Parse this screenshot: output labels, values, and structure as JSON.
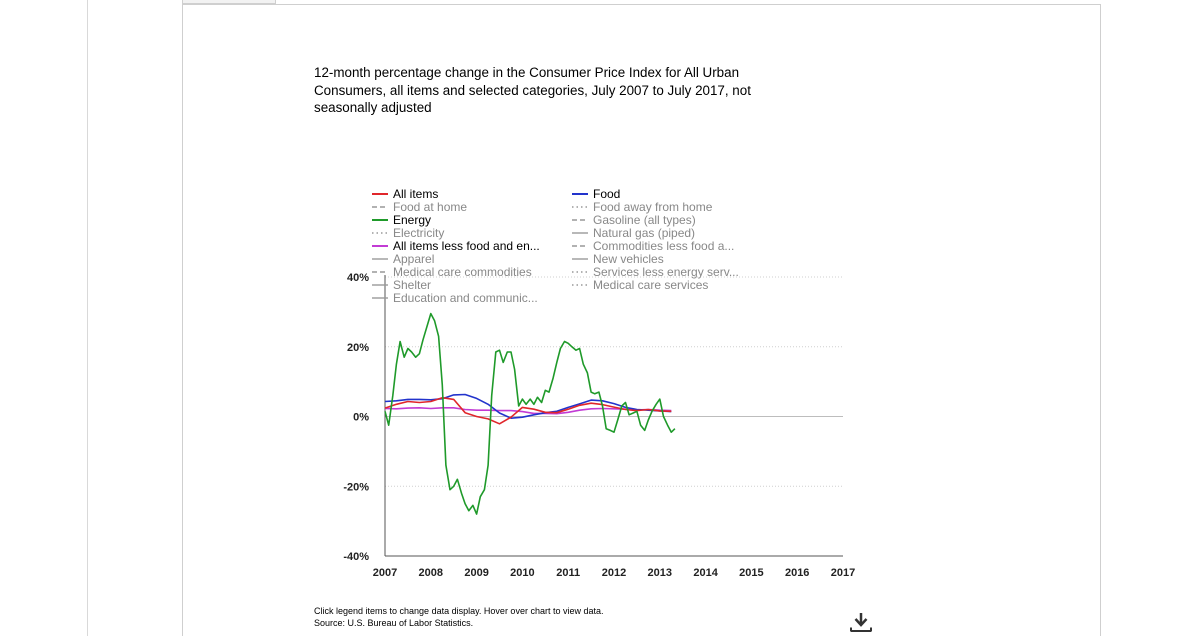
{
  "title": "12-month percentage change in the Consumer Price Index for All Urban Consumers, all items and selected categories, July 2007 to July 2017, not seasonally adjusted",
  "footer": {
    "note": "Click legend items to change data display. Hover over chart to view data.",
    "source": "Source: U.S. Bureau of Labor Statistics."
  },
  "download_icon": "download-icon",
  "chart_data": {
    "type": "line",
    "title": "12-month percentage change in the Consumer Price Index for All Urban Consumers, all items and selected categories, July 2007 to July 2017, not seasonally adjusted",
    "xlabel": "",
    "ylabel": "",
    "xlim": [
      2007,
      2017
    ],
    "ylim": [
      -40,
      40
    ],
    "x_ticks": [
      "2007",
      "2008",
      "2009",
      "2010",
      "2011",
      "2012",
      "2013",
      "2014",
      "2015",
      "2016",
      "2017"
    ],
    "y_ticks": [
      "-40%",
      "-20%",
      "0%",
      "20%",
      "40%"
    ],
    "y_tick_values": [
      -40,
      -20,
      0,
      20,
      40
    ],
    "grid": "horizontal dotted",
    "legend_placement": "top",
    "legend": [
      {
        "label": "All items",
        "color": "#e0262b",
        "style": "solid",
        "active": true
      },
      {
        "label": "Food",
        "color": "#2233cc",
        "style": "solid",
        "active": true
      },
      {
        "label": "Food at home",
        "color": "#999999",
        "style": "dashed",
        "active": false
      },
      {
        "label": "Food away from home",
        "color": "#999999",
        "style": "dotted",
        "active": false
      },
      {
        "label": "Energy",
        "color": "#1f9a2a",
        "style": "solid",
        "active": true
      },
      {
        "label": "Gasoline (all types)",
        "color": "#999999",
        "style": "dashed",
        "active": false
      },
      {
        "label": "Electricity",
        "color": "#999999",
        "style": "dotted",
        "active": false
      },
      {
        "label": "Natural gas (piped)",
        "color": "#999999",
        "style": "solid",
        "active": false
      },
      {
        "label": "All items less food and en...",
        "color": "#c23bd4",
        "style": "solid",
        "active": true
      },
      {
        "label": "Commodities less food a...",
        "color": "#999999",
        "style": "dashed",
        "active": false
      },
      {
        "label": "Apparel",
        "color": "#999999",
        "style": "solid",
        "active": false
      },
      {
        "label": "New vehicles",
        "color": "#999999",
        "style": "solid",
        "active": false
      },
      {
        "label": "Medical care commodities",
        "color": "#999999",
        "style": "dashed",
        "active": false
      },
      {
        "label": "Services less energy serv...",
        "color": "#999999",
        "style": "dotted",
        "active": false
      },
      {
        "label": "Shelter",
        "color": "#999999",
        "style": "solid",
        "active": false
      },
      {
        "label": "Medical care services",
        "color": "#999999",
        "style": "dotted",
        "active": false
      },
      {
        "label": "Education and communic...",
        "color": "#999999",
        "style": "solid",
        "active": false
      }
    ],
    "series": [
      {
        "name": "All items",
        "color": "#e0262b",
        "x": [
          2007.0,
          2007.25,
          2007.5,
          2007.75,
          2008.0,
          2008.25,
          2008.5,
          2008.75,
          2009.0,
          2009.25,
          2009.5,
          2009.75,
          2010.0,
          2010.25,
          2010.5,
          2010.75,
          2011.0,
          2011.25,
          2011.5,
          2011.75,
          2012.0,
          2012.25,
          2012.5,
          2012.75,
          2013.0,
          2013.25
        ],
        "values": [
          2.4,
          3.5,
          4.3,
          4.0,
          4.3,
          5.4,
          4.9,
          1.1,
          0.0,
          -0.7,
          -2.1,
          -0.2,
          2.6,
          2.1,
          1.2,
          1.1,
          2.1,
          3.2,
          3.8,
          3.4,
          2.7,
          2.0,
          1.7,
          2.0,
          1.6,
          1.5
        ]
      },
      {
        "name": "Food",
        "color": "#2233cc",
        "x": [
          2007.0,
          2007.25,
          2007.5,
          2007.75,
          2008.0,
          2008.25,
          2008.5,
          2008.75,
          2009.0,
          2009.25,
          2009.5,
          2009.75,
          2010.0,
          2010.25,
          2010.5,
          2010.75,
          2011.0,
          2011.25,
          2011.5,
          2011.75,
          2012.0,
          2012.25,
          2012.5,
          2012.75,
          2013.0,
          2013.25
        ],
        "values": [
          4.3,
          4.5,
          4.9,
          4.9,
          4.8,
          5.1,
          6.2,
          6.3,
          5.2,
          3.5,
          1.0,
          -0.5,
          -0.2,
          0.5,
          1.1,
          1.5,
          2.6,
          3.6,
          4.7,
          4.5,
          3.7,
          2.6,
          2.0,
          1.8,
          1.6,
          1.4
        ]
      },
      {
        "name": "Energy",
        "color": "#1f9a2a",
        "x": [
          2007.0,
          2007.08,
          2007.17,
          2007.25,
          2007.33,
          2007.42,
          2007.5,
          2007.58,
          2007.67,
          2007.75,
          2007.83,
          2008.0,
          2008.08,
          2008.17,
          2008.25,
          2008.33,
          2008.42,
          2008.5,
          2008.58,
          2008.67,
          2008.75,
          2008.83,
          2008.92,
          2009.0,
          2009.08,
          2009.17,
          2009.25,
          2009.33,
          2009.42,
          2009.5,
          2009.58,
          2009.67,
          2009.75,
          2009.83,
          2009.92,
          2010.0,
          2010.08,
          2010.17,
          2010.25,
          2010.33,
          2010.42,
          2010.5,
          2010.58,
          2010.67,
          2010.75,
          2010.83,
          2010.92,
          2011.0,
          2011.08,
          2011.17,
          2011.25,
          2011.33,
          2011.42,
          2011.5,
          2011.58,
          2011.67,
          2011.75,
          2011.83,
          2011.92,
          2012.0,
          2012.08,
          2012.17,
          2012.25,
          2012.33,
          2012.42,
          2012.5,
          2012.58,
          2012.67,
          2012.75,
          2012.83,
          2012.92,
          2013.0,
          2013.08,
          2013.17,
          2013.25,
          2013.33
        ],
        "values": [
          1.5,
          -2.5,
          6.0,
          15.0,
          21.5,
          17.0,
          19.5,
          18.5,
          17.0,
          18.0,
          22.0,
          29.5,
          27.5,
          23.0,
          9.0,
          -14.0,
          -21.0,
          -20.0,
          -18.0,
          -22.0,
          -25.0,
          -27.0,
          -25.5,
          -28.0,
          -23.0,
          -21.0,
          -14.0,
          6.0,
          18.5,
          19.0,
          15.5,
          18.5,
          18.5,
          13.5,
          3.0,
          5.0,
          3.5,
          5.0,
          3.5,
          5.5,
          4.0,
          7.5,
          7.0,
          11.0,
          15.5,
          19.5,
          21.5,
          21.0,
          20.0,
          19.0,
          19.5,
          15.0,
          12.5,
          7.0,
          6.5,
          7.0,
          3.0,
          -3.5,
          -4.0,
          -4.5,
          -1.0,
          3.0,
          4.0,
          0.5,
          1.0,
          1.5,
          -2.5,
          -4.0,
          -1.0,
          1.5,
          3.5,
          5.0,
          0.0,
          -2.5,
          -4.5,
          -3.5
        ]
      },
      {
        "name": "All items less food and en...",
        "color": "#c23bd4",
        "x": [
          2007.0,
          2007.25,
          2007.5,
          2007.75,
          2008.0,
          2008.25,
          2008.5,
          2008.75,
          2009.0,
          2009.25,
          2009.5,
          2009.75,
          2010.0,
          2010.25,
          2010.5,
          2010.75,
          2011.0,
          2011.25,
          2011.5,
          2011.75,
          2012.0,
          2012.25,
          2012.5,
          2012.75,
          2013.0,
          2013.25
        ],
        "values": [
          2.3,
          2.2,
          2.4,
          2.5,
          2.3,
          2.5,
          2.5,
          2.0,
          1.8,
          1.8,
          1.7,
          1.7,
          1.4,
          0.9,
          0.9,
          0.8,
          1.2,
          1.8,
          2.2,
          2.3,
          2.2,
          2.1,
          1.9,
          2.0,
          1.8,
          1.7
        ]
      }
    ]
  }
}
